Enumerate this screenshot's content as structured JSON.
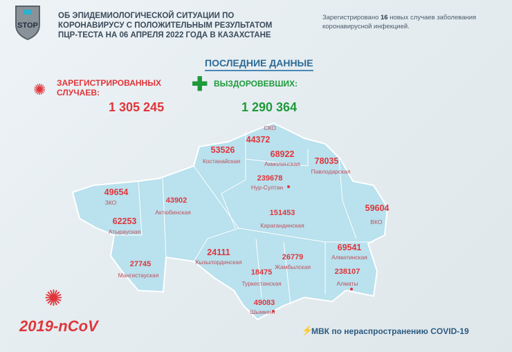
{
  "header": {
    "title_lines": [
      "ОБ ЭПИДЕМИОЛОГИЧЕСКОЙ СИТУАЦИИ ПО",
      "КОРОНАВИРУСУ С ПОЛОЖИТЕЛЬНЫМ РЕЗУЛЬТАТОМ",
      "ПЦР-ТЕСТА НА 06 АПРЕЛЯ 2022 ГОДА В КАЗАХСТАНЕ"
    ],
    "logo_text": "STOP",
    "note_pre": "Зарегистрировано ",
    "note_count": "16",
    "note_post": " новых случаев заболевания коронавирусной инфекцией."
  },
  "latest_label": "ПОСЛЕДНИЕ ДАННЫЕ",
  "registered": {
    "label_lines": [
      "ЗАРЕГИСТРИРОВАННЫХ",
      "СЛУЧАЕВ:"
    ],
    "value": "1 305 245"
  },
  "recovered": {
    "label": "ВЫЗДОРОВЕВШИХ:",
    "value": "1 290 364"
  },
  "colors": {
    "red": "#e0353a",
    "green": "#1e9a3a",
    "map": "#b9e1ee",
    "blue": "#2c6a96"
  },
  "regions": [
    {
      "name": "СКО",
      "value": "44372"
    },
    {
      "name": "Костанайская",
      "value": "53526"
    },
    {
      "name": "Акмолинская",
      "value": "68922"
    },
    {
      "name": "Павлодарская",
      "value": "78035"
    },
    {
      "name": "Нур-Султан",
      "value": "239678"
    },
    {
      "name": "ЗКО",
      "value": "49654"
    },
    {
      "name": "Актюбинская",
      "value": "43902"
    },
    {
      "name": "Атырауская",
      "value": "62253"
    },
    {
      "name": "Карагандинская",
      "value": "151453"
    },
    {
      "name": "ВКО",
      "value": "59604"
    },
    {
      "name": "Алматинская",
      "value": "69541"
    },
    {
      "name": "Кызылординская",
      "value": "24111"
    },
    {
      "name": "Жамбылская",
      "value": "26779"
    },
    {
      "name": "Туркестанская",
      "value": "18475"
    },
    {
      "name": "Алматы",
      "value": "238107"
    },
    {
      "name": "Мангистауская",
      "value": "27745"
    },
    {
      "name": "Шымкент",
      "value": "49083"
    }
  ],
  "footer": {
    "ncov": "2019-nCoV",
    "mvk": "МВК по нераспространению COVID-19"
  }
}
